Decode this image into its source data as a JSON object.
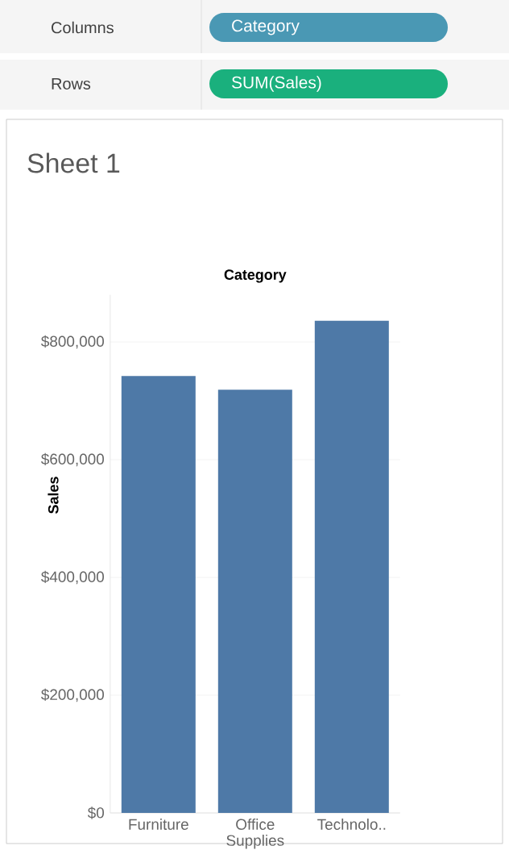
{
  "chart_data": {
    "type": "bar",
    "title": "Sheet 1",
    "xlabel": "Category",
    "ylabel": "Sales",
    "annotations": [
      "Columns",
      "Category",
      "Rows",
      "SUM(Sales)"
    ],
    "categories": [
      "Furniture",
      "Office Supplies",
      "Technolo.."
    ],
    "values": [
      742000,
      719000,
      836000
    ],
    "color": "#4e79a7",
    "ylim": [
      0,
      880000
    ],
    "yticks": [
      {
        "value": 0,
        "label": "$0"
      },
      {
        "value": 200000,
        "label": "$200,000"
      },
      {
        "value": 400000,
        "label": "$400,000"
      },
      {
        "value": 600000,
        "label": "$600,000"
      },
      {
        "value": 800000,
        "label": "$800,000"
      }
    ],
    "grid": "y"
  }
}
